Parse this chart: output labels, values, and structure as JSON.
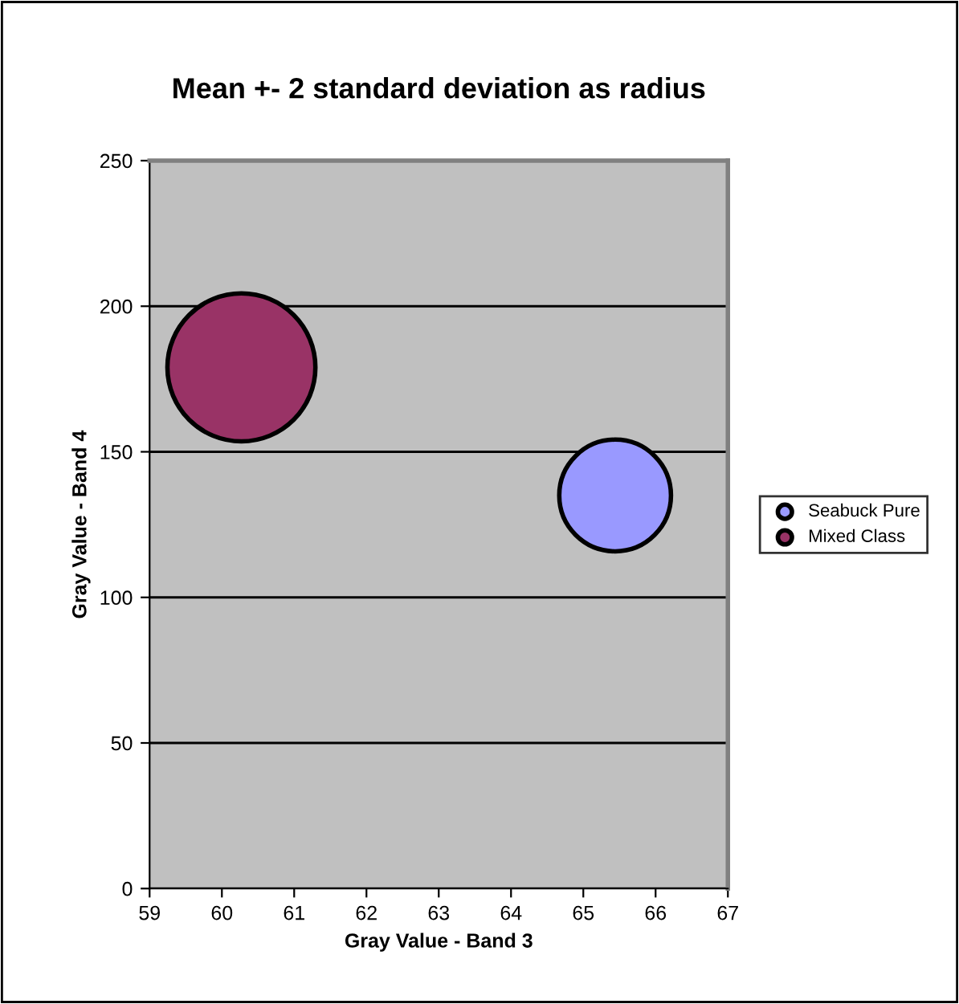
{
  "chart_data": {
    "type": "bubble",
    "title": "Mean +- 2 standard deviation as radius",
    "xlabel": "Gray Value - Band 3",
    "ylabel": "Gray Value - Band 4",
    "series": [
      {
        "name": "Seabuck Pure",
        "color": "#9999ff",
        "x": [
          65.44
        ],
        "values": [
          135
        ],
        "sizes": [
          0.57
        ]
      },
      {
        "name": "Mixed Class",
        "color": "#993366",
        "x": [
          60.27
        ],
        "values": [
          179
        ],
        "sizes": [
          1
        ]
      }
    ],
    "xlim": [
      59,
      67
    ],
    "xticks": [
      59,
      60,
      61,
      62,
      63,
      64,
      65,
      66,
      67
    ],
    "ylim": [
      0,
      250
    ],
    "yticks": [
      0,
      50,
      100,
      150,
      200,
      250
    ],
    "grid": "y",
    "legend": "right"
  }
}
